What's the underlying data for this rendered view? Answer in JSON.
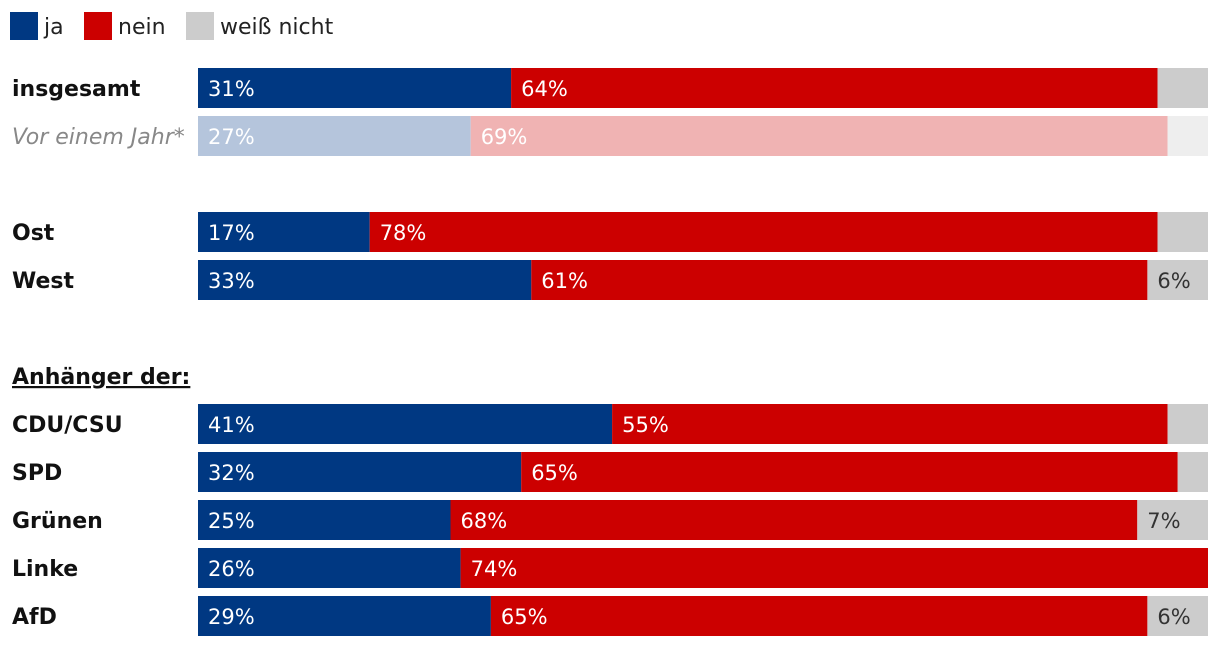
{
  "chart_data": {
    "type": "bar",
    "orientation": "horizontal",
    "stacked": true,
    "legend": [
      {
        "key": "ja",
        "label": "ja",
        "color": "#003882"
      },
      {
        "key": "nein",
        "label": "nein",
        "color": "#cc0000"
      },
      {
        "key": "weiss_nicht",
        "label": "weiß nicht",
        "color": "#cccccc"
      }
    ],
    "muted_colors": {
      "ja": "#b5c5dc",
      "nein": "#f0b3b3",
      "weiss_nicht": "#eeeeee"
    },
    "group_heading": "Anhänger der:",
    "categories": [
      {
        "label": "insgesamt",
        "ja": 31,
        "nein": 64,
        "weiss_nicht": 5,
        "labels": {
          "ja": "31%",
          "nein": "64%",
          "weiss_nicht": ""
        },
        "muted": false
      },
      {
        "label": "Vor einem Jahr*",
        "ja": 27,
        "nein": 69,
        "weiss_nicht": 4,
        "labels": {
          "ja": "27%",
          "nein": "69%",
          "weiss_nicht": ""
        },
        "muted": true
      },
      {
        "label": "Ost",
        "ja": 17,
        "nein": 78,
        "weiss_nicht": 5,
        "labels": {
          "ja": "17%",
          "nein": "78%",
          "weiss_nicht": ""
        },
        "muted": false
      },
      {
        "label": "West",
        "ja": 33,
        "nein": 61,
        "weiss_nicht": 6,
        "labels": {
          "ja": "33%",
          "nein": "61%",
          "weiss_nicht": "6%"
        },
        "muted": false
      },
      {
        "label": "CDU/CSU",
        "ja": 41,
        "nein": 55,
        "weiss_nicht": 4,
        "labels": {
          "ja": "41%",
          "nein": "55%",
          "weiss_nicht": ""
        },
        "muted": false
      },
      {
        "label": "SPD",
        "ja": 32,
        "nein": 65,
        "weiss_nicht": 3,
        "labels": {
          "ja": "32%",
          "nein": "65%",
          "weiss_nicht": ""
        },
        "muted": false
      },
      {
        "label": "Grünen",
        "ja": 25,
        "nein": 68,
        "weiss_nicht": 7,
        "labels": {
          "ja": "25%",
          "nein": "68%",
          "weiss_nicht": "7%"
        },
        "muted": false
      },
      {
        "label": "Linke",
        "ja": 26,
        "nein": 74,
        "weiss_nicht": 0,
        "labels": {
          "ja": "26%",
          "nein": "74%",
          "weiss_nicht": ""
        },
        "muted": false
      },
      {
        "label": "AfD",
        "ja": 29,
        "nein": 65,
        "weiss_nicht": 6,
        "labels": {
          "ja": "29%",
          "nein": "65%",
          "weiss_nicht": "6%"
        },
        "muted": false
      }
    ],
    "xlim": [
      0,
      100
    ]
  }
}
